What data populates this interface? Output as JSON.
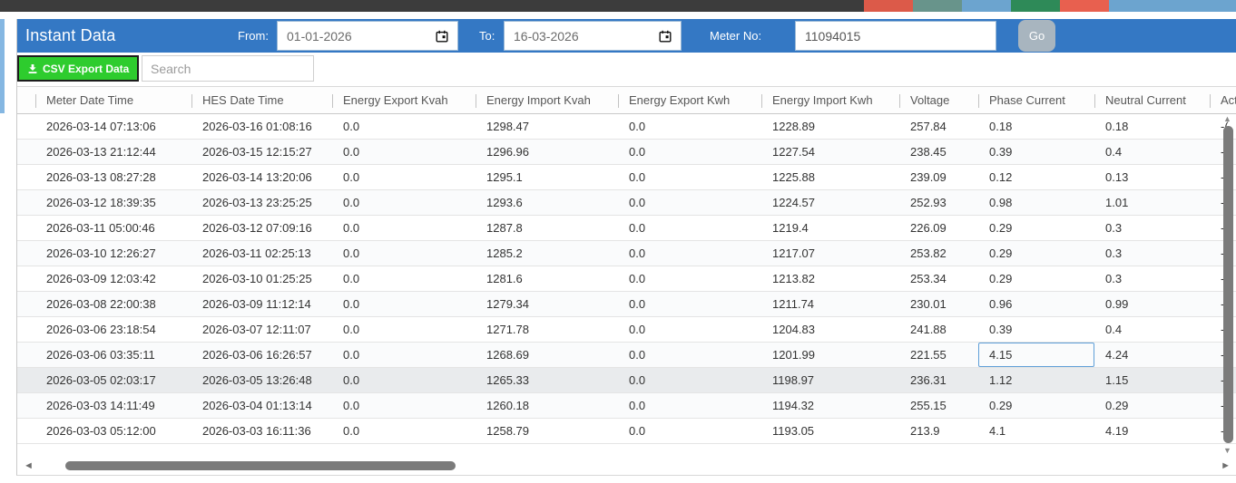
{
  "topbar": {
    "dark_color": "#3c3c3c",
    "segment_colors": [
      "#dc5a49",
      "#68948b",
      "#6ca4cf",
      "#2e8a58",
      "#e8604f",
      "#6ca4cf"
    ]
  },
  "header": {
    "title": "Instant Data",
    "from_label": "From:",
    "from_value": "01-01-2026",
    "to_label": "To:",
    "to_value": "16-03-2026",
    "meter_label": "Meter No:",
    "meter_value": "11094015",
    "go_label": "Go"
  },
  "toolbar": {
    "csv_button_label": "CSV Export Data",
    "search_placeholder": "Search"
  },
  "table": {
    "columns": [
      "Meter Date Time",
      "HES Date Time",
      "Energy Export Kvah",
      "Energy Import Kvah",
      "Energy Export Kwh",
      "Energy Import Kwh",
      "Voltage",
      "Phase Current",
      "Neutral Current",
      "Act"
    ],
    "rows": [
      [
        "2026-03-14 07:13:06",
        "2026-03-16 01:08:16",
        "0.0",
        "1298.47",
        "0.0",
        "1228.89",
        "257.84",
        "0.18",
        "0.18",
        "-("
      ],
      [
        "2026-03-13 21:12:44",
        "2026-03-15 12:15:27",
        "0.0",
        "1296.96",
        "0.0",
        "1227.54",
        "238.45",
        "0.39",
        "0.4",
        "-("
      ],
      [
        "2026-03-13 08:27:28",
        "2026-03-14 13:20:06",
        "0.0",
        "1295.1",
        "0.0",
        "1225.88",
        "239.09",
        "0.12",
        "0.13",
        "-("
      ],
      [
        "2026-03-12 18:39:35",
        "2026-03-13 23:25:25",
        "0.0",
        "1293.6",
        "0.0",
        "1224.57",
        "252.93",
        "0.98",
        "1.01",
        "-("
      ],
      [
        "2026-03-11 05:00:46",
        "2026-03-12 07:09:16",
        "0.0",
        "1287.8",
        "0.0",
        "1219.4",
        "226.09",
        "0.29",
        "0.3",
        "-("
      ],
      [
        "2026-03-10 12:26:27",
        "2026-03-11 02:25:13",
        "0.0",
        "1285.2",
        "0.0",
        "1217.07",
        "253.82",
        "0.29",
        "0.3",
        "-("
      ],
      [
        "2026-03-09 12:03:42",
        "2026-03-10 01:25:25",
        "0.0",
        "1281.6",
        "0.0",
        "1213.82",
        "253.34",
        "0.29",
        "0.3",
        "-("
      ],
      [
        "2026-03-08 22:00:38",
        "2026-03-09 11:12:14",
        "0.0",
        "1279.34",
        "0.0",
        "1211.74",
        "230.01",
        "0.96",
        "0.99",
        "-("
      ],
      [
        "2026-03-06 23:18:54",
        "2026-03-07 12:11:07",
        "0.0",
        "1271.78",
        "0.0",
        "1204.83",
        "241.88",
        "0.39",
        "0.4",
        "-("
      ],
      [
        "2026-03-06 03:35:11",
        "2026-03-06 16:26:57",
        "0.0",
        "1268.69",
        "0.0",
        "1201.99",
        "221.55",
        "4.15",
        "4.24",
        "-("
      ],
      [
        "2026-03-05 02:03:17",
        "2026-03-05 13:26:48",
        "0.0",
        "1265.33",
        "0.0",
        "1198.97",
        "236.31",
        "1.12",
        "1.15",
        "-("
      ],
      [
        "2026-03-03 14:11:49",
        "2026-03-04 01:13:14",
        "0.0",
        "1260.18",
        "0.0",
        "1194.32",
        "255.15",
        "0.29",
        "0.29",
        "-("
      ],
      [
        "2026-03-03 05:12:00",
        "2026-03-03 16:11:36",
        "0.0",
        "1258.79",
        "0.0",
        "1193.05",
        "213.9",
        "4.1",
        "4.19",
        "-("
      ]
    ],
    "highlighted_row_index": 10,
    "selected_cell": {
      "row_index": 9,
      "col_index": 7
    }
  },
  "scrollbars": {
    "h_left_arrow": "◄",
    "h_right_arrow": "►",
    "v_up_arrow": "▲",
    "v_down_arrow": "▼"
  },
  "colors": {
    "header_blue": "#3478c4",
    "csv_green": "#2ecc2e",
    "go_gray": "#a8b5bf",
    "row_highlight": "#e9ebed",
    "selected_cell_border": "#5f9fd8",
    "scrollbar_thumb": "#7b7b7b"
  }
}
